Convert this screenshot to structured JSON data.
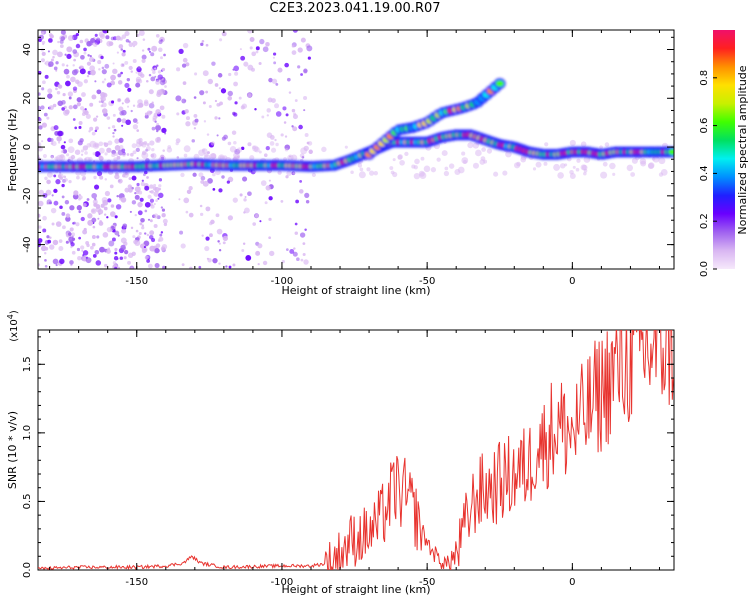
{
  "title": "C2E3.2023.041.19.00.R07",
  "chart_data": [
    {
      "type": "heatmap",
      "name": "spectrogram",
      "xlabel": "Height of straight line (km)",
      "ylabel": "Frequency (Hz)",
      "xlim": [
        -184,
        35
      ],
      "ylim": [
        -50,
        48
      ],
      "xticks": [
        -150,
        -100,
        -50,
        0
      ],
      "xtick_labels": [
        "-150",
        "-100",
        "-50",
        "0"
      ],
      "yticks": [
        -40,
        -20,
        0,
        20,
        40
      ],
      "ytick_labels": [
        "-40",
        "-20",
        "0",
        "20",
        "40"
      ],
      "colorbar": {
        "label": "Normalized spectral amplitude",
        "range": [
          0,
          1
        ],
        "ticks": [
          0.0,
          0.2,
          0.4,
          0.6,
          0.8
        ],
        "tick_labels": [
          "0.0",
          "0.2",
          "0.4",
          "0.6",
          "0.8"
        ],
        "colors": [
          "#f6e9fb",
          "#d9b6f2",
          "#a062f0",
          "#6a00ff",
          "#2020ff",
          "#0090ff",
          "#00f0f0",
          "#00e060",
          "#40ff00",
          "#c8f000",
          "#ffe000",
          "#ff9000",
          "#ff2020",
          "#f0106a"
        ]
      },
      "main_track": [
        [
          -184,
          -8
        ],
        [
          -150,
          -8
        ],
        [
          -140,
          -7.5
        ],
        [
          -130,
          -7
        ],
        [
          -120,
          -7.5
        ],
        [
          -100,
          -7.5
        ],
        [
          -90,
          -8
        ],
        [
          -82,
          -7.5
        ],
        [
          -76,
          -5
        ],
        [
          -70,
          -2
        ],
        [
          -66,
          0
        ],
        [
          -62,
          2
        ],
        [
          -56,
          2
        ],
        [
          -50,
          2
        ],
        [
          -45,
          4
        ],
        [
          -40,
          5
        ],
        [
          -35,
          5
        ],
        [
          -30,
          3
        ],
        [
          -25,
          1
        ],
        [
          -20,
          0
        ],
        [
          -15,
          -2
        ],
        [
          -10,
          -3
        ],
        [
          -5,
          -3
        ],
        [
          0,
          -2
        ],
        [
          5,
          -2
        ],
        [
          10,
          -3
        ],
        [
          15,
          -2
        ],
        [
          20,
          -2
        ],
        [
          25,
          -2
        ],
        [
          35,
          -2
        ]
      ],
      "branch_track": [
        [
          -70,
          -3
        ],
        [
          -64,
          3
        ],
        [
          -60,
          7
        ],
        [
          -55,
          8
        ],
        [
          -50,
          10
        ],
        [
          -45,
          14
        ],
        [
          -38,
          16
        ],
        [
          -33,
          18
        ],
        [
          -28,
          23
        ],
        [
          -24,
          27
        ]
      ]
    },
    {
      "type": "line",
      "name": "snr",
      "xlabel": "Height of straight line (km)",
      "ylabel": "SNR (10 * v/v)",
      "exponent_label": "(x10",
      "exponent_power": "4",
      "exponent_close": ")",
      "xlim": [
        -184,
        35
      ],
      "ylim": [
        0,
        1.75
      ],
      "xticks": [
        -150,
        -100,
        -50,
        0
      ],
      "xtick_labels": [
        "-150",
        "-100",
        "-50",
        "0"
      ],
      "yticks": [
        0.0,
        0.5,
        1.0,
        1.5
      ],
      "ytick_labels": [
        "0.0",
        "0.5",
        "1.0",
        "1.5"
      ],
      "color": "#e8342f",
      "series": [
        {
          "name": "SNR",
          "x": [
            -184,
            -170,
            -150,
            -140,
            -134,
            -131,
            -128,
            -120,
            -100,
            -90,
            -84,
            -80,
            -76,
            -72,
            -68,
            -64,
            -61,
            -58,
            -55,
            -52,
            -49,
            -46,
            -43,
            -40,
            -37,
            -33,
            -28,
            -24,
            -20,
            -15,
            -12,
            -10,
            -8,
            -5,
            0,
            5,
            8,
            10,
            13,
            15,
            18,
            20,
            25,
            30,
            35
          ],
          "y": [
            0.01,
            0.02,
            0.02,
            0.03,
            0.05,
            0.1,
            0.05,
            0.02,
            0.03,
            0.03,
            0.05,
            0.12,
            0.22,
            0.25,
            0.3,
            0.45,
            0.6,
            0.55,
            0.45,
            0.3,
            0.16,
            0.08,
            0.04,
            0.1,
            0.32,
            0.55,
            0.6,
            0.65,
            0.7,
            0.75,
            0.95,
            0.9,
            1.0,
            1.05,
            1.0,
            1.15,
            1.25,
            1.3,
            1.4,
            1.45,
            1.5,
            1.55,
            1.6,
            1.65,
            1.68
          ]
        }
      ]
    }
  ]
}
